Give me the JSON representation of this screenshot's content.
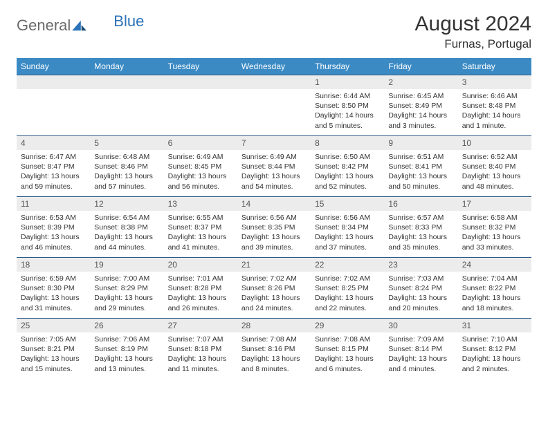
{
  "logo": {
    "general": "General",
    "blue": "Blue"
  },
  "title": "August 2024",
  "location": "Furnas, Portugal",
  "colors": {
    "header_bg": "#3b8ac4",
    "header_fg": "#ffffff",
    "daynum_bg": "#ececec",
    "rule": "#2a5a88",
    "logo_gray": "#6a6a6a",
    "logo_blue": "#2d72b8"
  },
  "weekdays": [
    "Sunday",
    "Monday",
    "Tuesday",
    "Wednesday",
    "Thursday",
    "Friday",
    "Saturday"
  ],
  "weeks": [
    [
      null,
      null,
      null,
      null,
      {
        "n": "1",
        "sr": "6:44 AM",
        "ss": "8:50 PM",
        "dl": "14 hours and 5 minutes."
      },
      {
        "n": "2",
        "sr": "6:45 AM",
        "ss": "8:49 PM",
        "dl": "14 hours and 3 minutes."
      },
      {
        "n": "3",
        "sr": "6:46 AM",
        "ss": "8:48 PM",
        "dl": "14 hours and 1 minute."
      }
    ],
    [
      {
        "n": "4",
        "sr": "6:47 AM",
        "ss": "8:47 PM",
        "dl": "13 hours and 59 minutes."
      },
      {
        "n": "5",
        "sr": "6:48 AM",
        "ss": "8:46 PM",
        "dl": "13 hours and 57 minutes."
      },
      {
        "n": "6",
        "sr": "6:49 AM",
        "ss": "8:45 PM",
        "dl": "13 hours and 56 minutes."
      },
      {
        "n": "7",
        "sr": "6:49 AM",
        "ss": "8:44 PM",
        "dl": "13 hours and 54 minutes."
      },
      {
        "n": "8",
        "sr": "6:50 AM",
        "ss": "8:42 PM",
        "dl": "13 hours and 52 minutes."
      },
      {
        "n": "9",
        "sr": "6:51 AM",
        "ss": "8:41 PM",
        "dl": "13 hours and 50 minutes."
      },
      {
        "n": "10",
        "sr": "6:52 AM",
        "ss": "8:40 PM",
        "dl": "13 hours and 48 minutes."
      }
    ],
    [
      {
        "n": "11",
        "sr": "6:53 AM",
        "ss": "8:39 PM",
        "dl": "13 hours and 46 minutes."
      },
      {
        "n": "12",
        "sr": "6:54 AM",
        "ss": "8:38 PM",
        "dl": "13 hours and 44 minutes."
      },
      {
        "n": "13",
        "sr": "6:55 AM",
        "ss": "8:37 PM",
        "dl": "13 hours and 41 minutes."
      },
      {
        "n": "14",
        "sr": "6:56 AM",
        "ss": "8:35 PM",
        "dl": "13 hours and 39 minutes."
      },
      {
        "n": "15",
        "sr": "6:56 AM",
        "ss": "8:34 PM",
        "dl": "13 hours and 37 minutes."
      },
      {
        "n": "16",
        "sr": "6:57 AM",
        "ss": "8:33 PM",
        "dl": "13 hours and 35 minutes."
      },
      {
        "n": "17",
        "sr": "6:58 AM",
        "ss": "8:32 PM",
        "dl": "13 hours and 33 minutes."
      }
    ],
    [
      {
        "n": "18",
        "sr": "6:59 AM",
        "ss": "8:30 PM",
        "dl": "13 hours and 31 minutes."
      },
      {
        "n": "19",
        "sr": "7:00 AM",
        "ss": "8:29 PM",
        "dl": "13 hours and 29 minutes."
      },
      {
        "n": "20",
        "sr": "7:01 AM",
        "ss": "8:28 PM",
        "dl": "13 hours and 26 minutes."
      },
      {
        "n": "21",
        "sr": "7:02 AM",
        "ss": "8:26 PM",
        "dl": "13 hours and 24 minutes."
      },
      {
        "n": "22",
        "sr": "7:02 AM",
        "ss": "8:25 PM",
        "dl": "13 hours and 22 minutes."
      },
      {
        "n": "23",
        "sr": "7:03 AM",
        "ss": "8:24 PM",
        "dl": "13 hours and 20 minutes."
      },
      {
        "n": "24",
        "sr": "7:04 AM",
        "ss": "8:22 PM",
        "dl": "13 hours and 18 minutes."
      }
    ],
    [
      {
        "n": "25",
        "sr": "7:05 AM",
        "ss": "8:21 PM",
        "dl": "13 hours and 15 minutes."
      },
      {
        "n": "26",
        "sr": "7:06 AM",
        "ss": "8:19 PM",
        "dl": "13 hours and 13 minutes."
      },
      {
        "n": "27",
        "sr": "7:07 AM",
        "ss": "8:18 PM",
        "dl": "13 hours and 11 minutes."
      },
      {
        "n": "28",
        "sr": "7:08 AM",
        "ss": "8:16 PM",
        "dl": "13 hours and 8 minutes."
      },
      {
        "n": "29",
        "sr": "7:08 AM",
        "ss": "8:15 PM",
        "dl": "13 hours and 6 minutes."
      },
      {
        "n": "30",
        "sr": "7:09 AM",
        "ss": "8:14 PM",
        "dl": "13 hours and 4 minutes."
      },
      {
        "n": "31",
        "sr": "7:10 AM",
        "ss": "8:12 PM",
        "dl": "13 hours and 2 minutes."
      }
    ]
  ],
  "labels": {
    "sunrise": "Sunrise: ",
    "sunset": "Sunset: ",
    "daylight": "Daylight: "
  }
}
